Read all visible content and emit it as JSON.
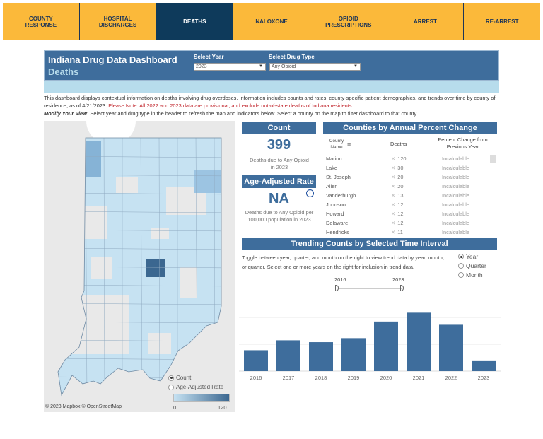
{
  "nav": {
    "tabs": [
      {
        "label": "COUNTY\nRESPONSE"
      },
      {
        "label": "HOSPITAL\nDISCHARGES"
      },
      {
        "label": "DEATHS",
        "active": true
      },
      {
        "label": "NALOXONE"
      },
      {
        "label": "OPIOID\nPRESCRIPTIONS"
      },
      {
        "label": "ARREST"
      },
      {
        "label": "RE-ARREST"
      }
    ]
  },
  "header": {
    "title": "Indiana Drug Data Dashboard",
    "subtitle": "Deaths",
    "year_label": "Select Year",
    "year_value": "2023",
    "drug_label": "Select Drug Type",
    "drug_value": "Any Opioid"
  },
  "description": {
    "text": "This dashboard displays contextual information on deaths involving drug overdoses. Information includes counts and rates, county-specific patient demographics, and trends over time by county of residence, as of 4/21/2023. ",
    "note": "Please Note: All 2022 and 2023 data are provisional, and exclude out-of-state deaths of Indiana residents.",
    "modify_label": "Modify Your View:",
    "modify_text": " Select year and drug type in the header to refresh the map and indicators below. Select a county on the map to filter dashboard to that county."
  },
  "count": {
    "title": "Count",
    "value": "399",
    "caption": "Deaths due to Any Opioid in 2023"
  },
  "rate": {
    "title": "Age-Adjusted Rate",
    "value": "NA",
    "caption": "Deaths due to Any Opioid per 100,000 population in 2023"
  },
  "counties": {
    "title": "Counties by Annual Percent Change",
    "columns": [
      "County Name",
      "Deaths",
      "Percent Change from Previous Year"
    ],
    "rows": [
      {
        "name": "Marion",
        "deaths": "120",
        "change": "Incalculable"
      },
      {
        "name": "Lake",
        "deaths": "30",
        "change": "Incalculable"
      },
      {
        "name": "St. Joseph",
        "deaths": "20",
        "change": "Incalculable"
      },
      {
        "name": "Allen",
        "deaths": "20",
        "change": "Incalculable"
      },
      {
        "name": "Vanderburgh",
        "deaths": "13",
        "change": "Incalculable"
      },
      {
        "name": "Johnson",
        "deaths": "12",
        "change": "Incalculable"
      },
      {
        "name": "Howard",
        "deaths": "12",
        "change": "Incalculable"
      },
      {
        "name": "Delaware",
        "deaths": "12",
        "change": "Incalculable"
      },
      {
        "name": "Hendricks",
        "deaths": "11",
        "change": "Incalculable"
      }
    ]
  },
  "trend": {
    "title": "Trending Counts by Selected Time Interval",
    "text": "Toggle between year, quarter, and month on the right to view trend data by year, month, or quarter. Select one or more years on the right for inclusion in trend data.",
    "intervals": [
      {
        "label": "Year",
        "selected": true
      },
      {
        "label": "Quarter"
      },
      {
        "label": "Month"
      }
    ],
    "range_start": "2016",
    "range_end": "2023"
  },
  "map": {
    "legend_options": [
      {
        "label": "Count",
        "selected": true
      },
      {
        "label": "Age-Adjusted Rate"
      }
    ],
    "scale_min": "0",
    "scale_max": "120",
    "attribution": "© 2023 Mapbox  © OpenStreetMap",
    "color_low": "#c6e2f2",
    "color_high": "#3b6790"
  },
  "chart_data": {
    "type": "bar",
    "categories": [
      "2016",
      "2017",
      "2018",
      "2019",
      "2020",
      "2021",
      "2022",
      "2023"
    ],
    "values": [
      780,
      1150,
      1080,
      1230,
      1850,
      2180,
      1730,
      399
    ],
    "ylim": [
      0,
      2300
    ],
    "grid": true,
    "color": "#3e6d9c"
  }
}
